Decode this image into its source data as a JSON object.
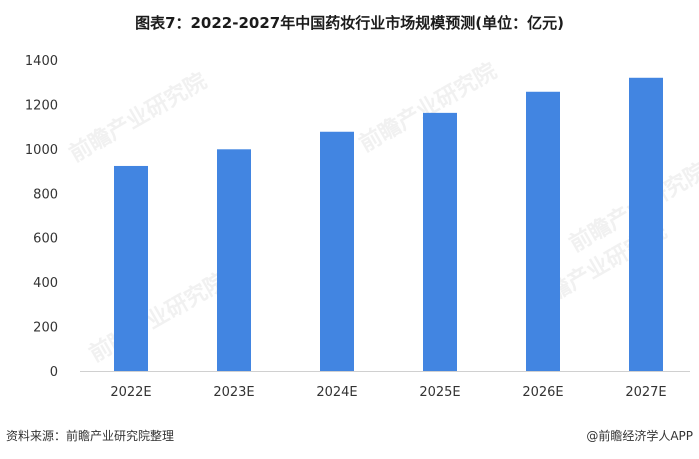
{
  "title": "图表7：2022-2027年中国药妆行业市场规模预测(单位：亿元)",
  "chart_data": {
    "type": "bar",
    "categories": [
      "2022E",
      "2023E",
      "2024E",
      "2025E",
      "2026E",
      "2027E"
    ],
    "values": [
      923,
      998,
      1077,
      1162,
      1257,
      1320
    ],
    "ylim": [
      0,
      1400
    ],
    "yticks": [
      0,
      200,
      400,
      600,
      800,
      1000,
      1200,
      1400
    ],
    "grid": false,
    "bar_color": "#4285e1"
  },
  "watermark": {
    "text": "前瞻产业研究院"
  },
  "footer": {
    "source": "资料来源：前瞻产业研究院整理",
    "brand": "@前瞻经济学人APP"
  }
}
